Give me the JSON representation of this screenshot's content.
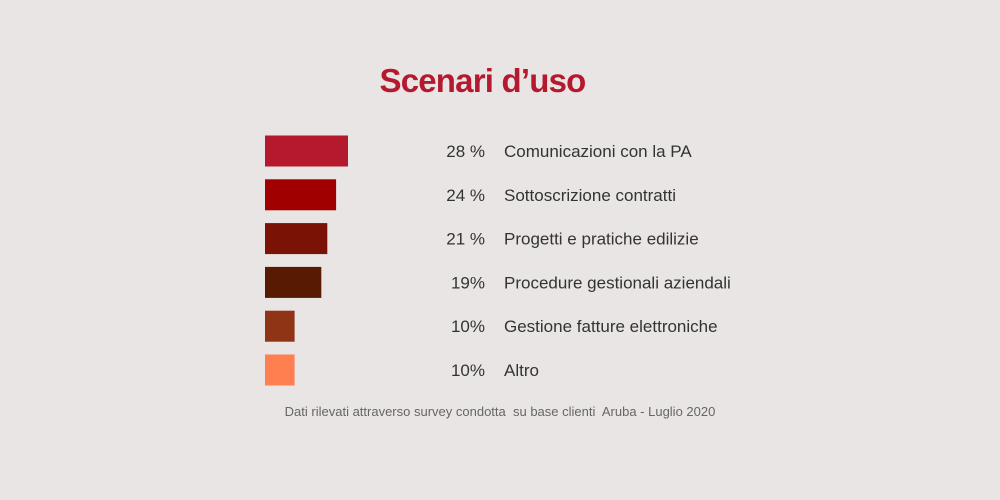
{
  "chart_data": {
    "type": "bar",
    "orientation": "horizontal",
    "title": "Scenari d’uso",
    "categories": [
      "Comunicazioni con la PA",
      "Sottoscrizione contratti",
      "Progetti e pratiche edilizie",
      "Procedure gestionali aziendali",
      "Gestione fatture elettroniche",
      "Altro"
    ],
    "values": [
      28,
      24,
      21,
      19,
      10,
      10
    ],
    "value_labels": [
      "28 %",
      "24 %",
      "21 %",
      "19%",
      "10%",
      "10%"
    ],
    "colors": [
      "#b5192e",
      "#a00000",
      "#7a1205",
      "#581a00",
      "#8f3414",
      "#ff7f50"
    ],
    "xlabel": "",
    "ylabel": "",
    "grid": false,
    "legend": "none"
  },
  "footnote": "Dati rilevati attraverso survey condotta  su base clienti  Aruba - Luglio 2020"
}
